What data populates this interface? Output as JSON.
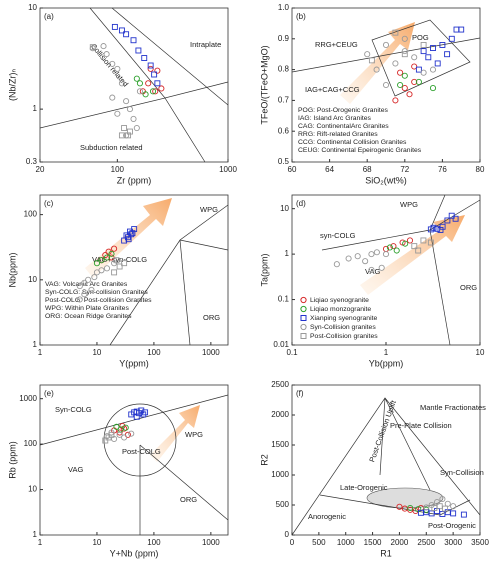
{
  "chart_data": [
    {
      "type": "scatter",
      "label": "(a)",
      "xlabel": "Zr (ppm)",
      "ylabel": "(Nb/Zr)ₙ",
      "xlog": true,
      "ylog": true,
      "xlim": [
        20,
        1000
      ],
      "ylim": [
        0.3,
        10
      ],
      "xticks": [
        20,
        100,
        1000
      ],
      "yticks": [
        0.3,
        1,
        10
      ],
      "annotations": [
        "Intraplate",
        "Collision related",
        "Subduction related"
      ],
      "series": [
        {
          "color": "#d62728",
          "marker": "circle",
          "x": [
            200,
            220,
            170,
            190,
            250,
            230
          ],
          "values": [
            2.5,
            1.5,
            1.5,
            1.8,
            1.6,
            2.4
          ]
        },
        {
          "color": "#2ca02c",
          "marker": "circle",
          "x": [
            150,
            180,
            160,
            210
          ],
          "values": [
            2.0,
            1.4,
            1.8,
            1.5
          ]
        },
        {
          "color": "#2233cc",
          "marker": "square",
          "x": [
            95,
            120,
            140,
            155,
            175,
            200,
            215,
            110,
            230
          ],
          "values": [
            6.5,
            5.5,
            4.8,
            3.8,
            3.2,
            2.7,
            2.2,
            6.0,
            1.8
          ]
        },
        {
          "color": "#999999",
          "marker": "circle",
          "x": [
            60,
            75,
            80,
            90,
            100,
            110,
            90,
            120,
            130,
            100,
            140,
            150,
            120,
            160
          ],
          "values": [
            4,
            4.2,
            3.5,
            2.8,
            2.5,
            1.8,
            1.3,
            1.2,
            1.0,
            0.9,
            0.8,
            0.65,
            0.55,
            1.5
          ]
        },
        {
          "color": "#999999",
          "marker": "square",
          "x": [
            110,
            125,
            115,
            130,
            60
          ],
          "values": [
            0.55,
            0.55,
            0.65,
            0.6,
            4.1
          ]
        }
      ]
    },
    {
      "type": "scatter",
      "label": "(b)",
      "xlabel": "SiO₂(wt%)",
      "ylabel": "TFeO/(TFeO+MgO)",
      "xlog": false,
      "ylog": false,
      "xlim": [
        60,
        80
      ],
      "ylim": [
        0.5,
        1.0
      ],
      "xticks": [
        60,
        64,
        68,
        72,
        76,
        80
      ],
      "yticks": [
        0.5,
        0.6,
        0.7,
        0.8,
        0.9,
        {
          "value": 1,
          "label": "1.0"
        }
      ],
      "annotations": [
        "POG",
        "RRG+CEUG",
        "IAG+CAG+CCG",
        "POG: Post-Orogenic Granites",
        "IAG: Island Arc Granites",
        "CAG: ContinentalArc Granites",
        "RRG: Rift-related Granites",
        "CCG: Continental Collision Granites",
        "CEUG: Continental Epeirogenic Granites"
      ],
      "series": [
        {
          "color": "#d62728",
          "marker": "circle",
          "x": [
            71,
            72,
            73,
            71.5,
            72.5,
            73
          ],
          "values": [
            0.7,
            0.74,
            0.76,
            0.79,
            0.72,
            0.81
          ]
        },
        {
          "color": "#2ca02c",
          "marker": "circle",
          "x": [
            71.5,
            72,
            75,
            73.5
          ],
          "values": [
            0.75,
            0.78,
            0.74,
            0.76
          ]
        },
        {
          "color": "#2233cc",
          "marker": "square",
          "x": [
            74,
            75,
            76,
            77,
            77.5,
            76.5,
            75.5,
            78,
            74.5,
            73.5
          ],
          "values": [
            0.86,
            0.87,
            0.88,
            0.9,
            0.93,
            0.85,
            0.82,
            0.93,
            0.84,
            0.8
          ]
        },
        {
          "color": "#999999",
          "marker": "circle",
          "x": [
            68,
            70,
            71,
            72,
            73,
            69,
            72,
            74,
            70,
            75
          ],
          "values": [
            0.85,
            0.88,
            0.82,
            0.86,
            0.84,
            0.8,
            0.9,
            0.79,
            0.75,
            0.8
          ]
        },
        {
          "color": "#999999",
          "marker": "square",
          "x": [
            71,
            72,
            74,
            68.5
          ],
          "values": [
            0.92,
            0.85,
            0.88,
            0.83
          ]
        }
      ]
    },
    {
      "type": "scatter",
      "label": "(c)",
      "xlabel": "Y(ppm)",
      "ylabel": "Nb(ppm)",
      "xlog": true,
      "ylog": true,
      "xlim": [
        1,
        2000
      ],
      "ylim": [
        1,
        200
      ],
      "xticks": [
        1,
        10,
        100,
        1000
      ],
      "yticks": [
        1,
        10,
        100
      ],
      "annotations": [
        "WPG",
        "VAG+syn-COLG",
        "ORG",
        "VAG: Volcanic Arc Granites",
        "Syn-COLG: Syn-collision Granites",
        "Post-COLG: Post-collision Granites",
        "WPG: Within Plate Granites",
        "ORG: Ocean Ridge Granites"
      ],
      "series": [
        {
          "color": "#d62728",
          "marker": "circle",
          "x": [
            14,
            16,
            18,
            20,
            12
          ],
          "values": [
            24,
            27,
            22,
            30,
            20
          ]
        },
        {
          "color": "#2ca02c",
          "marker": "circle",
          "x": [
            10,
            12,
            15,
            18
          ],
          "values": [
            18,
            20,
            22,
            25
          ]
        },
        {
          "color": "#2233cc",
          "marker": "square",
          "x": [
            30,
            35,
            40,
            45,
            38,
            42,
            33,
            36
          ],
          "values": [
            40,
            45,
            50,
            60,
            55,
            52,
            48,
            42
          ]
        },
        {
          "color": "#999999",
          "marker": "circle",
          "x": [
            5,
            6,
            7,
            8,
            6,
            9,
            10,
            12,
            5,
            15,
            20
          ],
          "values": [
            8,
            9,
            10,
            7,
            6,
            11,
            13,
            14,
            5,
            15,
            18
          ]
        },
        {
          "color": "#999999",
          "marker": "square",
          "x": [
            20,
            25,
            30,
            22
          ],
          "values": [
            13,
            16,
            18,
            20
          ]
        }
      ]
    },
    {
      "type": "scatter",
      "label": "(d)",
      "xlabel": "Yb(ppm)",
      "ylabel": "Ta(ppm)",
      "xlog": true,
      "ylog": true,
      "xlim": [
        0.1,
        10
      ],
      "ylim": [
        0.01,
        20
      ],
      "xticks": [
        0.1,
        1,
        10
      ],
      "yticks": [
        0.01,
        0.1,
        1,
        10
      ],
      "annotations": [
        "WPG",
        "syn-COLG",
        "VAG",
        "ORG"
      ],
      "series": [
        {
          "name": "Liqiao syenogranite",
          "color": "#d62728",
          "marker": "circle",
          "x": [
            1.2,
            1.5,
            1.0,
            1.8
          ],
          "values": [
            1.5,
            1.8,
            1.3,
            2.0
          ]
        },
        {
          "name": "Liqiao monzogranite",
          "color": "#2ca02c",
          "marker": "circle",
          "x": [
            1.1,
            1.3,
            1.6
          ],
          "values": [
            1.4,
            1.2,
            1.7
          ]
        },
        {
          "name": "Xianping syenogranite",
          "color": "#2233cc",
          "marker": "square",
          "x": [
            3,
            3.2,
            3.5,
            4,
            4.5,
            5,
            5.5,
            3.8
          ],
          "values": [
            3.5,
            3.8,
            3.6,
            4,
            5.5,
            7,
            6,
            3.4
          ]
        },
        {
          "name": "Syn-Collision granites",
          "color": "#999999",
          "marker": "circle",
          "x": [
            0.4,
            0.5,
            0.6,
            0.7,
            0.8,
            0.3,
            1,
            0.9,
            0.7
          ],
          "values": [
            0.8,
            0.9,
            0.7,
            1.0,
            1.1,
            0.6,
            1.0,
            0.5,
            0.45
          ]
        },
        {
          "name": "Post-Collision granites",
          "color": "#999999",
          "marker": "square",
          "x": [
            2,
            2.5,
            3,
            2.2
          ],
          "values": [
            1.5,
            2.0,
            1.8,
            1.2
          ]
        }
      ]
    },
    {
      "type": "scatter",
      "label": "(e)",
      "xlabel": "Y+Nb (ppm)",
      "ylabel": "Rb (ppm)",
      "xlog": true,
      "ylog": true,
      "xlim": [
        1,
        2000
      ],
      "ylim": [
        1,
        2000
      ],
      "xticks": [
        1,
        10,
        100,
        1000
      ],
      "yticks": [
        1,
        10,
        100,
        1000
      ],
      "annotations": [
        "Syn-COLG",
        "WPG",
        "VAG",
        "ORG",
        "Post-COLG"
      ],
      "series": [
        {
          "color": "#d62728",
          "marker": "circle",
          "x": [
            20,
            25,
            30,
            35,
            28
          ],
          "values": [
            200,
            180,
            220,
            160,
            250
          ]
        },
        {
          "color": "#2ca02c",
          "marker": "circle",
          "x": [
            22,
            26,
            32
          ],
          "values": [
            240,
            210,
            230
          ]
        },
        {
          "color": "#2233cc",
          "marker": "square",
          "x": [
            45,
            50,
            55,
            60,
            70,
            65,
            40,
            50
          ],
          "values": [
            500,
            520,
            480,
            550,
            500,
            450,
            450,
            400
          ]
        },
        {
          "color": "#999999",
          "marker": "circle",
          "x": [
            15,
            18,
            20,
            25,
            30,
            40
          ],
          "values": [
            150,
            180,
            130,
            160,
            140,
            170
          ]
        },
        {
          "color": "#999999",
          "marker": "square",
          "x": [
            14,
            16,
            18
          ],
          "values": [
            120,
            140,
            160
          ]
        }
      ]
    },
    {
      "type": "scatter",
      "label": "(f)",
      "xlabel": "R1",
      "ylabel": "R2",
      "xlog": false,
      "ylog": false,
      "xlim": [
        0,
        3500
      ],
      "ylim": [
        0,
        2500
      ],
      "xticks": [
        0,
        500,
        1000,
        1500,
        2000,
        2500,
        3000,
        3500
      ],
      "yticks": [
        0,
        500,
        1000,
        1500,
        2000,
        2500
      ],
      "annotations": [
        "Mantle Fractionates",
        "Pre-Plate Collision",
        "Post-Collision Uplift",
        "Syn-Collision",
        "Late-Orogenic",
        "Anorogenic",
        "Post-Orogenic"
      ],
      "series": [
        {
          "color": "#d62728",
          "marker": "circle",
          "x": [
            2000,
            2200,
            2300,
            2400,
            2100
          ],
          "values": [
            470,
            420,
            400,
            450,
            440
          ]
        },
        {
          "color": "#2ca02c",
          "marker": "circle",
          "x": [
            2200,
            2500,
            2350
          ],
          "values": [
            450,
            420,
            430
          ]
        },
        {
          "color": "#2233cc",
          "marker": "square",
          "x": [
            2500,
            2600,
            2700,
            2800,
            2900,
            3000,
            3200,
            2400
          ],
          "values": [
            380,
            360,
            400,
            350,
            380,
            360,
            340,
            370
          ]
        },
        {
          "color": "#999999",
          "marker": "circle",
          "x": [
            2600,
            2700,
            2800,
            2900,
            3000,
            2500
          ],
          "values": [
            500,
            550,
            600,
            520,
            480,
            460
          ]
        },
        {
          "color": "#999999",
          "marker": "square",
          "x": [
            2650,
            2750,
            2850
          ],
          "values": [
            450,
            480,
            440
          ]
        }
      ]
    }
  ]
}
